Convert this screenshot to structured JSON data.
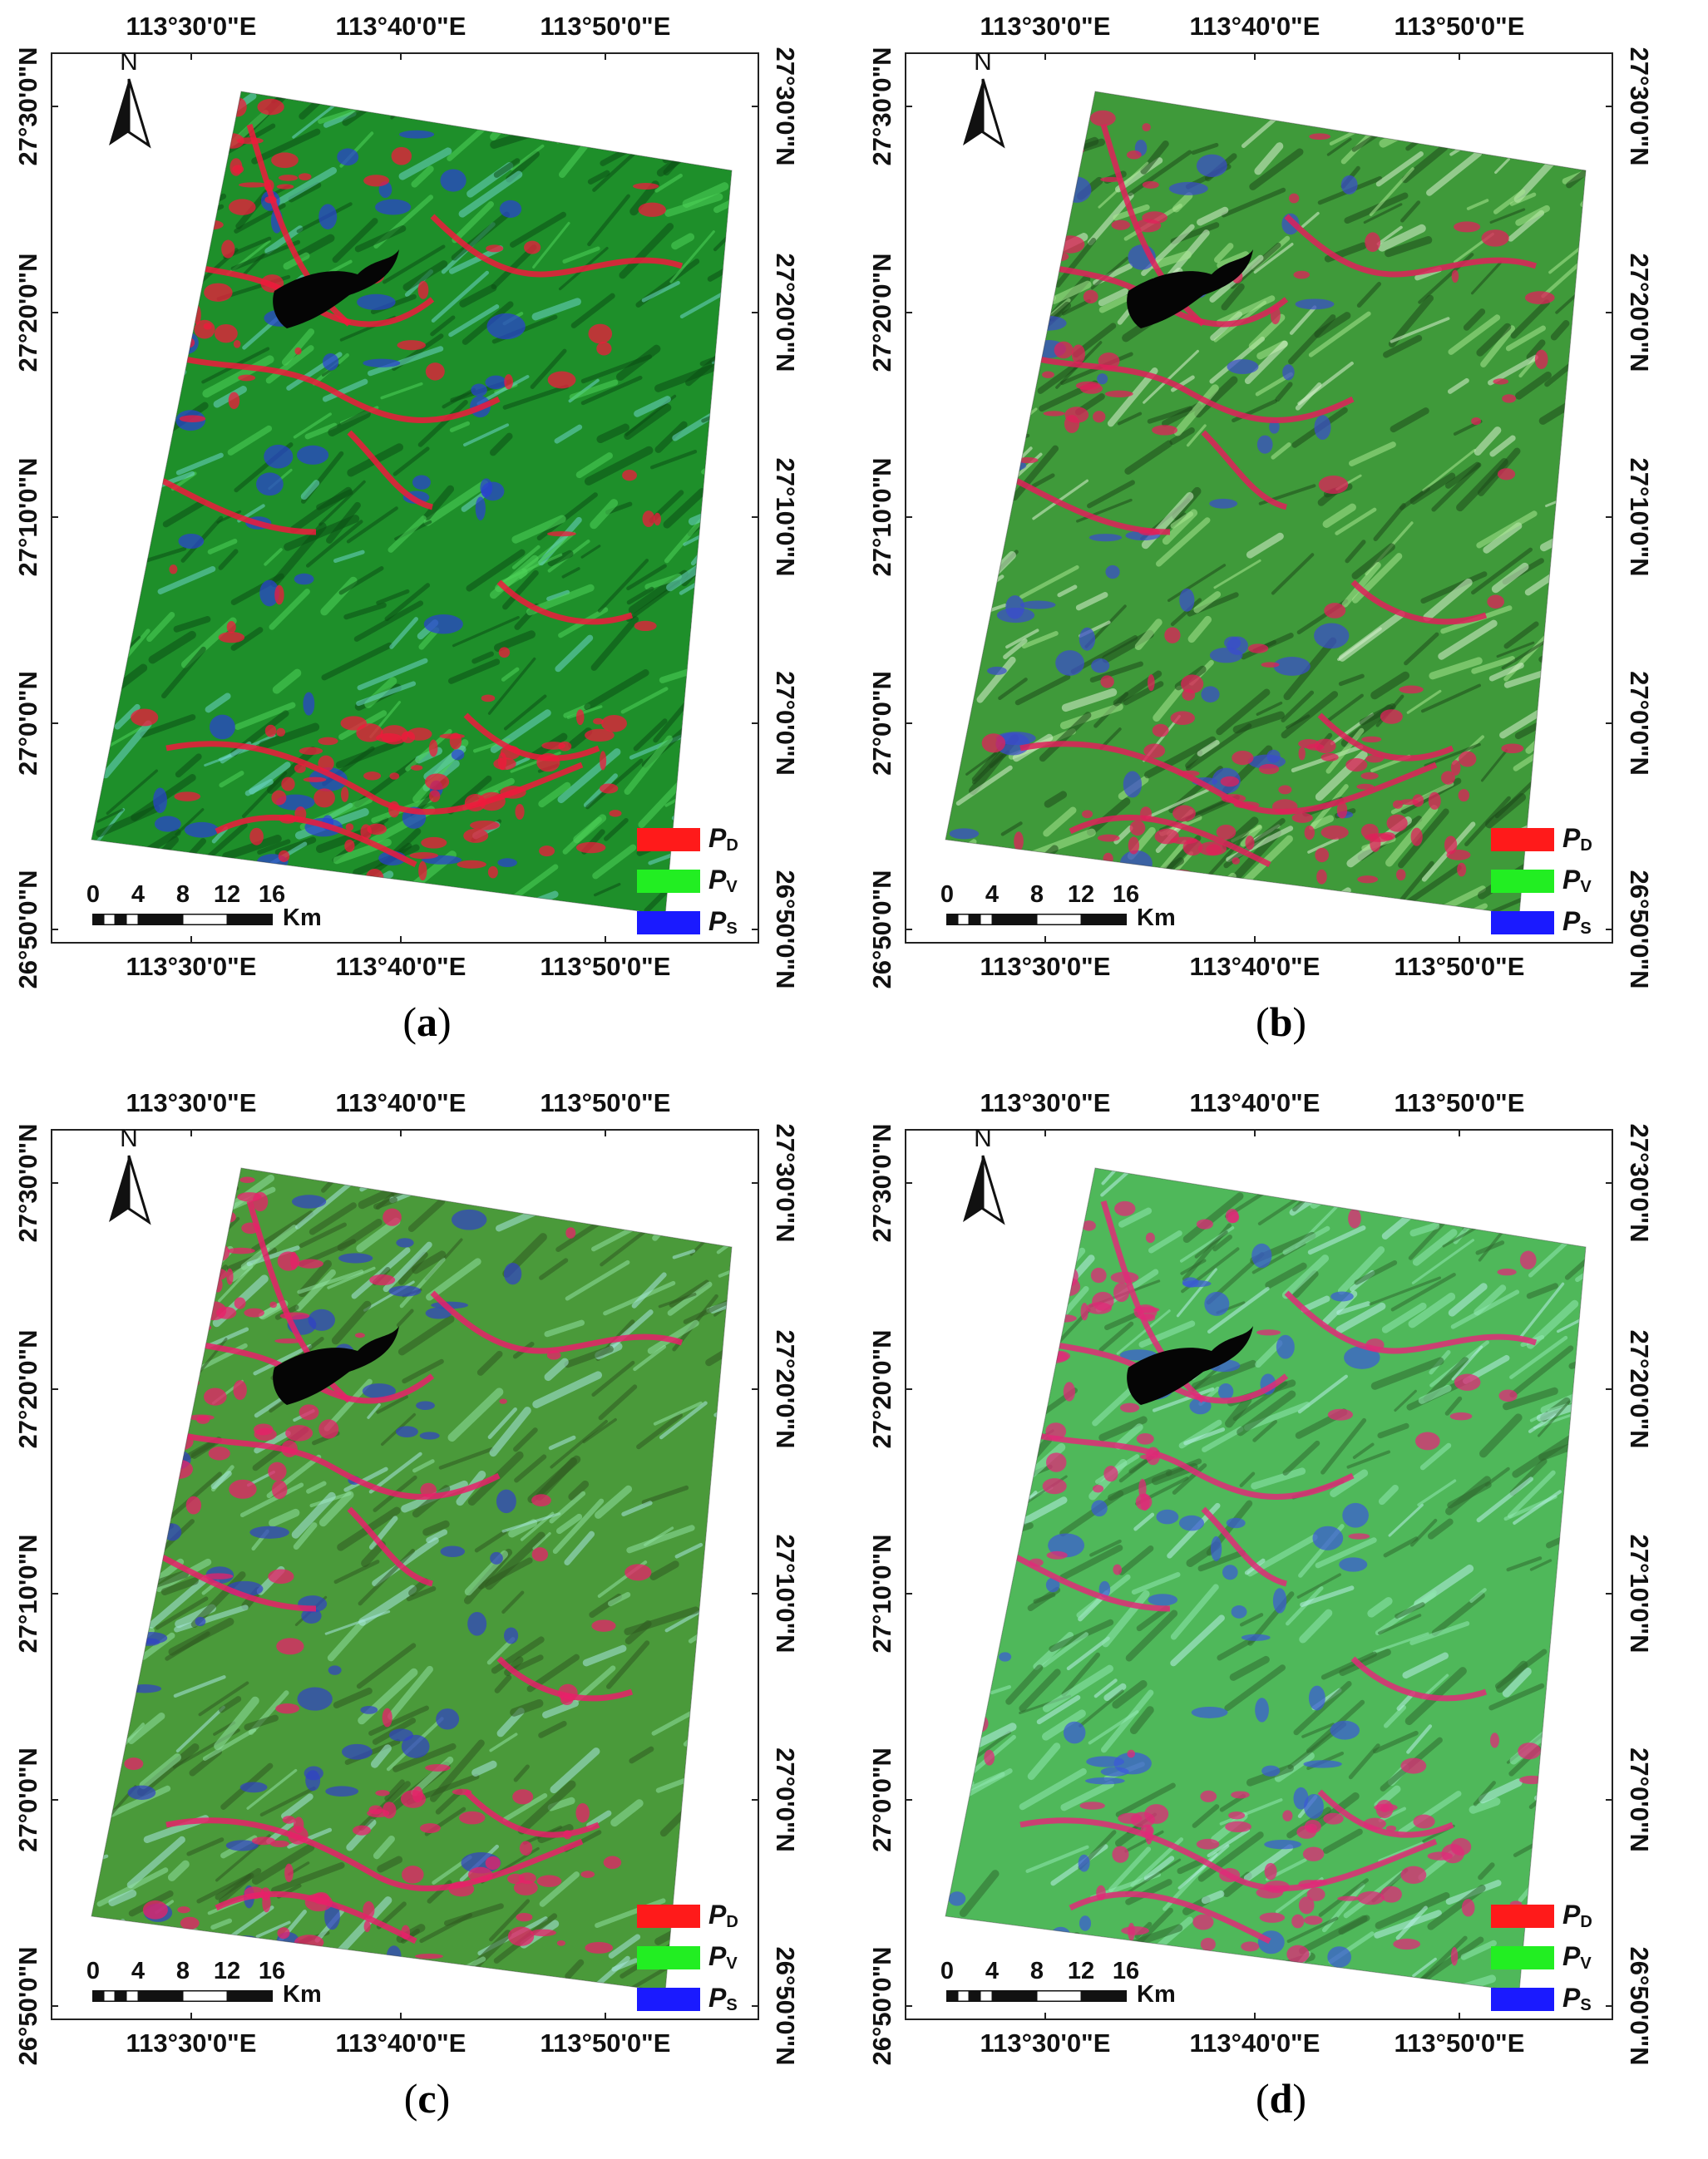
{
  "labels": {
    "lon_ticks": [
      "113°30'0\"E",
      "113°40'0\"E",
      "113°50'0\"E"
    ],
    "lat_ticks": [
      "27°30'0\"N",
      "27°20'0\"N",
      "27°10'0\"N",
      "27°0'0\"N",
      "26°50'0\"N"
    ],
    "north": "N",
    "scale_ticks": [
      "0",
      "4",
      "8",
      "12",
      "16"
    ],
    "scale_unit": "Km"
  },
  "legend": [
    {
      "symbol": "P",
      "sub": "D",
      "color": "#ff1a1a"
    },
    {
      "symbol": "P",
      "sub": "V",
      "color": "#22ee22"
    },
    {
      "symbol": "P",
      "sub": "S",
      "color": "#1a1aff"
    }
  ],
  "panels": [
    {
      "id": "a",
      "caption_open": "(",
      "caption_letter": "a",
      "caption_close": ")",
      "palette": {
        "base": "#1e8f2a",
        "light": "#4fd45a",
        "dark": "#0b4f14",
        "highlight": "#6bd6c8",
        "red": "#f01a3c",
        "blue": "#2a3fd6"
      }
    },
    {
      "id": "b",
      "caption_open": "(",
      "caption_letter": "b",
      "caption_close": ")",
      "palette": {
        "base": "#3f9a3a",
        "light": "#a8e890",
        "dark": "#1d4a1a",
        "highlight": "#d8f2d0",
        "red": "#e0205a",
        "blue": "#3a4ad0"
      }
    },
    {
      "id": "c",
      "caption_open": "(",
      "caption_letter": "c",
      "caption_close": ")",
      "palette": {
        "base": "#4a9a3a",
        "light": "#8fe0a0",
        "dark": "#2f5a20",
        "highlight": "#a8e8e0",
        "red": "#e8206a",
        "blue": "#3040c8"
      }
    },
    {
      "id": "d",
      "caption_open": "(",
      "caption_letter": "d",
      "caption_close": ")",
      "palette": {
        "base": "#4fb85a",
        "light": "#8fe8b0",
        "dark": "#2f6a30",
        "highlight": "#b8f0e8",
        "red": "#e02a78",
        "blue": "#3a58d8"
      }
    }
  ]
}
